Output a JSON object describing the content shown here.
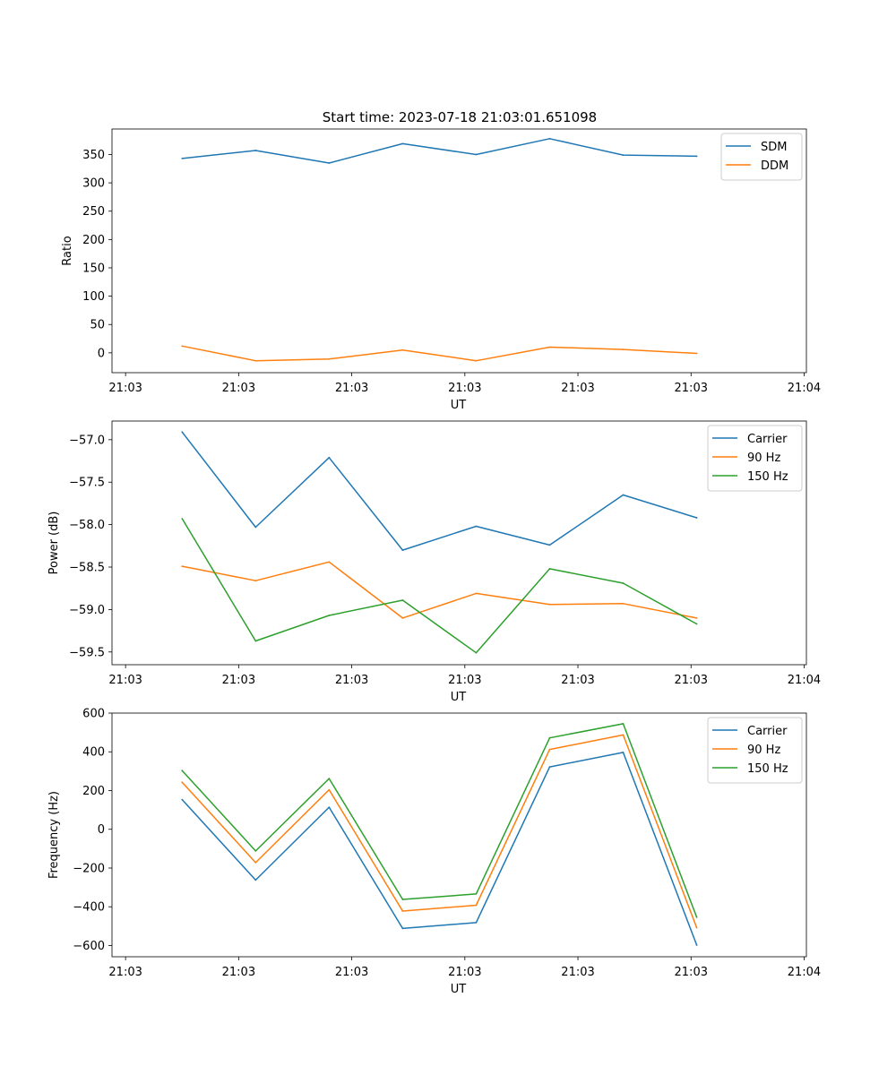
{
  "figure_title": "Start time: 2023-07-18 21:03:01.651098",
  "chart_data": [
    {
      "type": "line",
      "title": "Start time: 2023-07-18 21:03:01.651098",
      "xlabel": "UT",
      "ylabel": "Ratio",
      "x_tick_labels": [
        "21:03",
        "21:03",
        "21:03",
        "21:03",
        "21:03",
        "21:03",
        "21:04"
      ],
      "x_tick_positions": [
        0,
        1,
        2,
        3,
        4,
        5,
        6
      ],
      "xlim": [
        -0.12,
        6.02
      ],
      "x": [
        0.5,
        1.15,
        1.8,
        2.45,
        3.1,
        3.75,
        4.4,
        5.05
      ],
      "ylim": [
        -35,
        395
      ],
      "y_ticks": [
        0,
        50,
        100,
        150,
        200,
        250,
        300,
        350
      ],
      "legend_position": "top-right",
      "series": [
        {
          "name": "SDM",
          "color": "#1f77b4",
          "values": [
            343,
            357,
            335,
            369,
            350,
            378,
            349,
            347
          ]
        },
        {
          "name": "DDM",
          "color": "#ff7f0e",
          "values": [
            12,
            -14,
            -11,
            5,
            -14,
            10,
            6,
            -1
          ]
        }
      ]
    },
    {
      "type": "line",
      "title": "",
      "xlabel": "UT",
      "ylabel": "Power (dB)",
      "x_tick_labels": [
        "21:03",
        "21:03",
        "21:03",
        "21:03",
        "21:03",
        "21:03",
        "21:04"
      ],
      "x_tick_positions": [
        0,
        1,
        2,
        3,
        4,
        5,
        6
      ],
      "xlim": [
        -0.12,
        6.02
      ],
      "x": [
        0.5,
        1.15,
        1.8,
        2.45,
        3.1,
        3.75,
        4.4,
        5.05
      ],
      "ylim": [
        -59.65,
        -56.78
      ],
      "y_ticks": [
        -59.5,
        -59.0,
        -58.5,
        -58.0,
        -57.5,
        -57.0
      ],
      "y_tick_labels": [
        "−59.5",
        "−59.0",
        "−58.5",
        "−58.0",
        "−57.5",
        "−57.0"
      ],
      "legend_position": "top-right",
      "series": [
        {
          "name": "Carrier",
          "color": "#1f77b4",
          "values": [
            -56.91,
            -58.03,
            -57.21,
            -58.3,
            -58.02,
            -58.24,
            -57.65,
            -57.92
          ]
        },
        {
          "name": "90 Hz",
          "color": "#ff7f0e",
          "values": [
            -58.49,
            -58.66,
            -58.44,
            -59.1,
            -58.81,
            -58.94,
            -58.93,
            -59.1
          ]
        },
        {
          "name": "150 Hz",
          "color": "#2ca02c",
          "values": [
            -57.93,
            -59.37,
            -59.07,
            -58.89,
            -59.51,
            -58.52,
            -58.69,
            -59.17
          ]
        }
      ]
    },
    {
      "type": "line",
      "title": "",
      "xlabel": "UT",
      "ylabel": "Frequency (Hz)",
      "x_tick_labels": [
        "21:03",
        "21:03",
        "21:03",
        "21:03",
        "21:03",
        "21:03",
        "21:04"
      ],
      "x_tick_positions": [
        0,
        1,
        2,
        3,
        4,
        5,
        6
      ],
      "xlim": [
        -0.12,
        6.02
      ],
      "x": [
        0.5,
        1.15,
        1.8,
        2.45,
        3.1,
        3.75,
        4.4,
        5.05
      ],
      "ylim": [
        -658,
        600
      ],
      "y_ticks": [
        -600,
        -400,
        -200,
        0,
        200,
        400,
        600
      ],
      "y_tick_labels": [
        "−600",
        "−400",
        "−200",
        "0",
        "200",
        "400",
        "600"
      ],
      "legend_position": "top-right",
      "series": [
        {
          "name": "Carrier",
          "color": "#1f77b4",
          "values": [
            153,
            -262,
            114,
            -512,
            -482,
            322,
            397,
            -598
          ]
        },
        {
          "name": "90 Hz",
          "color": "#ff7f0e",
          "values": [
            243,
            -172,
            204,
            -422,
            -392,
            412,
            487,
            -508
          ]
        },
        {
          "name": "150 Hz",
          "color": "#2ca02c",
          "values": [
            303,
            -112,
            262,
            -362,
            -334,
            472,
            545,
            -454
          ]
        }
      ]
    }
  ]
}
